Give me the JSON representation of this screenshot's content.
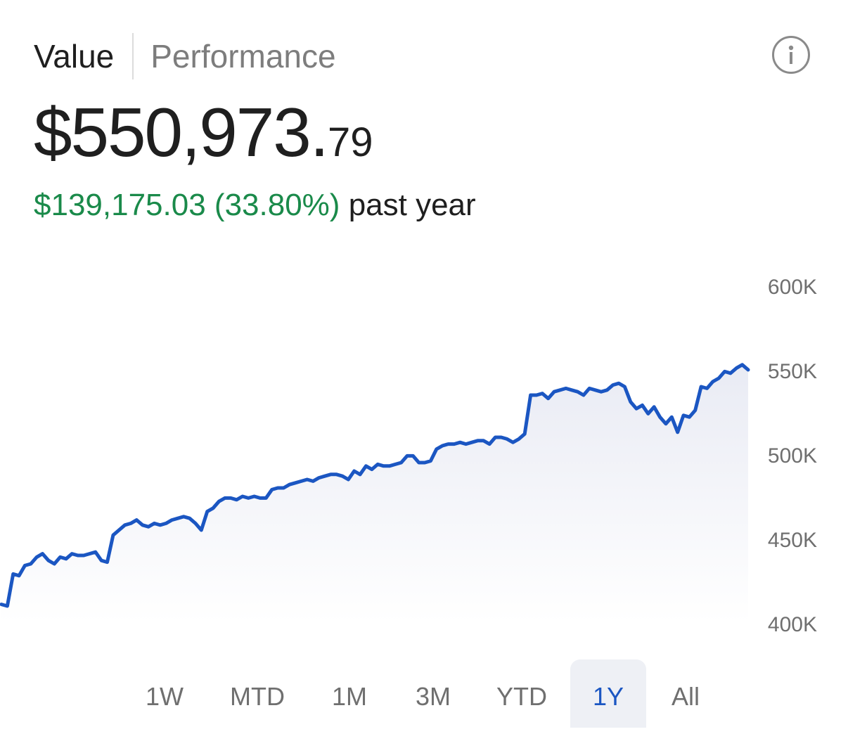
{
  "tabs": [
    {
      "label": "Value",
      "active": true
    },
    {
      "label": "Performance",
      "active": false
    }
  ],
  "info_icon": "info-icon",
  "portfolio": {
    "value_main": "$550,973.",
    "value_cents": "79",
    "change_amount": "$139,175.03 (33.80%)",
    "change_label": "past year"
  },
  "colors": {
    "line": "#1b56c2",
    "positive": "#1a8a4a",
    "selected_range_bg": "#eef0f5",
    "selected_range_text": "#1b56c2",
    "area_fill": "#eef0f6"
  },
  "chart_data": {
    "type": "line",
    "title": "",
    "xlabel": "",
    "ylabel": "",
    "y_tick_labels": [
      "600K",
      "550K",
      "500K",
      "450K",
      "400K"
    ],
    "y_ticks": [
      600000,
      550000,
      500000,
      450000,
      400000
    ],
    "ylim": [
      400000,
      600000
    ],
    "y_axis_position": "right",
    "grid": false,
    "fill_below": true,
    "series": [
      {
        "values": [
          411000,
          410000,
          429000,
          428000,
          434000,
          435000,
          439000,
          441000,
          437000,
          435000,
          439000,
          438000,
          441000,
          440000,
          440000,
          441000,
          442000,
          437000,
          436000,
          452000,
          455000,
          458000,
          459000,
          461000,
          458000,
          457000,
          459000,
          458000,
          459000,
          461000,
          462000,
          463000,
          462000,
          459000,
          455000,
          466000,
          468000,
          472000,
          474000,
          474000,
          473000,
          475000,
          474000,
          475000,
          474000,
          474000,
          479000,
          480000,
          480000,
          482000,
          483000,
          484000,
          485000,
          484000,
          486000,
          487000,
          488000,
          488000,
          487000,
          485000,
          490000,
          488000,
          493000,
          491000,
          494000,
          493000,
          493000,
          494000,
          495000,
          499000,
          499000,
          495000,
          495000,
          496000,
          503000,
          505000,
          506000,
          506000,
          507000,
          506000,
          507000,
          508000,
          508000,
          506000,
          510000,
          510000,
          509000,
          507000,
          509000,
          512000,
          535000,
          535000,
          536000,
          533000,
          537000,
          538000,
          539000,
          538000,
          537000,
          535000,
          539000,
          538000,
          537000,
          538000,
          541000,
          542000,
          540000,
          531000,
          527000,
          529000,
          524000,
          528000,
          522000,
          518000,
          522000,
          513000,
          523000,
          522000,
          526000,
          540000,
          539000,
          543000,
          545000,
          549000,
          548000,
          551000,
          553000,
          550000
        ]
      }
    ]
  },
  "ranges": [
    {
      "label": "1W",
      "selected": false
    },
    {
      "label": "MTD",
      "selected": false
    },
    {
      "label": "1M",
      "selected": false
    },
    {
      "label": "3M",
      "selected": false
    },
    {
      "label": "YTD",
      "selected": false
    },
    {
      "label": "1Y",
      "selected": true
    },
    {
      "label": "All",
      "selected": false
    }
  ]
}
